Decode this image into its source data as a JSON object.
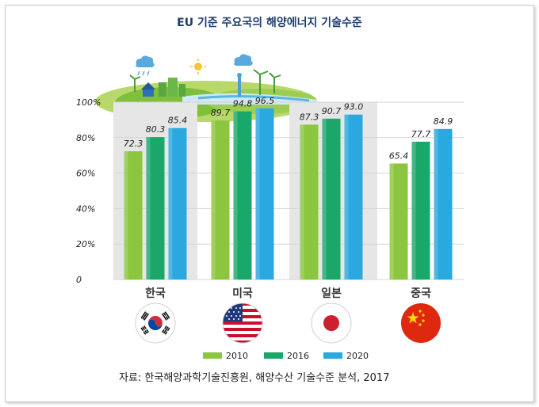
{
  "title": "EU 기준 주요국의 해양에너지 기술수준",
  "source": "자료: 한국해양과학기술진흥원, 해양수산 기술수준 분석, 2017",
  "chart_data": {
    "type": "bar",
    "categories": [
      "한국",
      "미국",
      "일본",
      "중국"
    ],
    "series": [
      {
        "name": "2010",
        "values": [
          72.3,
          89.7,
          87.3,
          65.4
        ],
        "color": "#8cc63f"
      },
      {
        "name": "2016",
        "values": [
          80.3,
          94.8,
          90.7,
          77.7
        ],
        "color": "#1aa86a"
      },
      {
        "name": "2020",
        "values": [
          85.4,
          96.5,
          93.0,
          84.9
        ],
        "color": "#2aa8e0"
      }
    ],
    "value_labels": [
      [
        "72.3",
        "89.7",
        "87.3",
        "65.4"
      ],
      [
        "80.3",
        "94.8",
        "90.7",
        "77.7"
      ],
      [
        "85.4",
        "96.5",
        "93.0",
        "84.9"
      ]
    ],
    "yticks": [
      "0",
      "20%",
      "40%",
      "60%",
      "80%",
      "100%"
    ],
    "ylim": [
      0,
      100
    ],
    "legend_position": "bottom",
    "flags": [
      "korea-flag",
      "usa-flag",
      "japan-flag",
      "china-flag"
    ]
  }
}
